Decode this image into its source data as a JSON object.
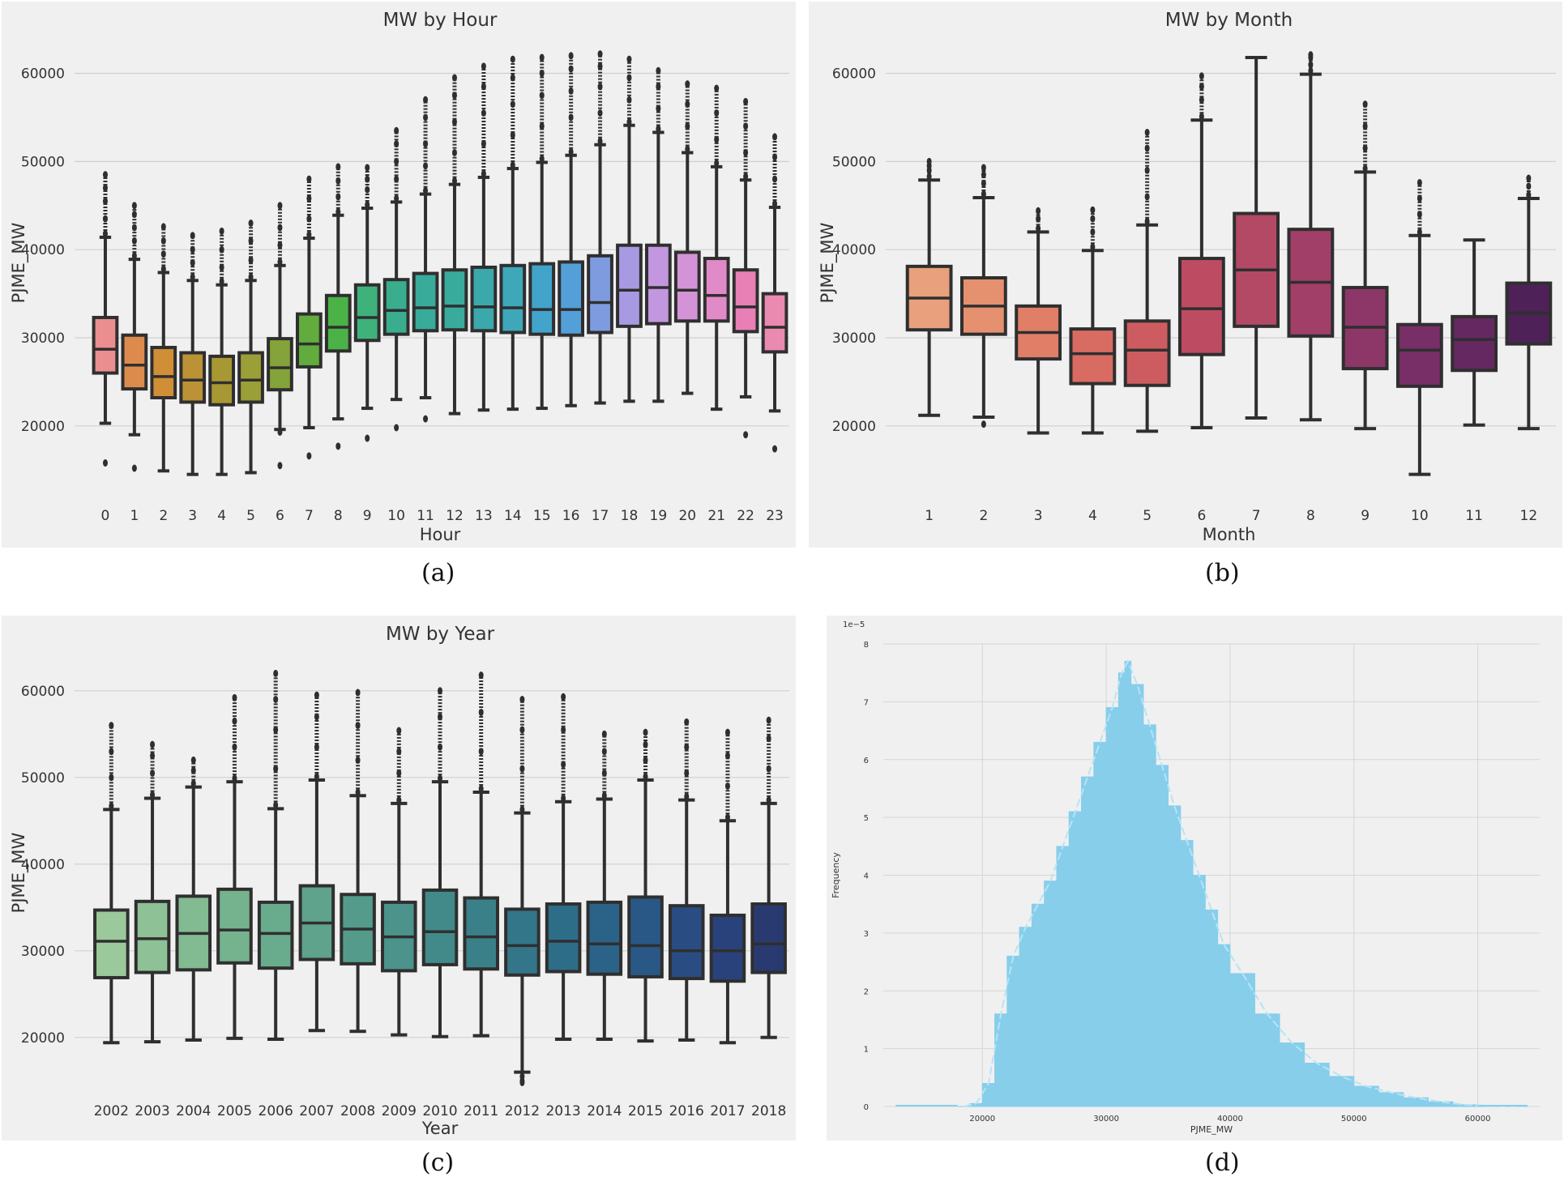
{
  "captions": {
    "a": "(a)",
    "b": "(b)",
    "c": "(c)",
    "d": "(d)"
  },
  "chart_data": [
    {
      "id": "a",
      "type": "box",
      "title": "MW by Hour",
      "xlabel": "Hour",
      "ylabel": "PJME_MW",
      "ylim": [
        13000,
        64000
      ],
      "yticks": [
        20000,
        30000,
        40000,
        50000,
        60000
      ],
      "categories": [
        "0",
        "1",
        "2",
        "3",
        "4",
        "5",
        "6",
        "7",
        "8",
        "9",
        "10",
        "11",
        "12",
        "13",
        "14",
        "15",
        "16",
        "17",
        "18",
        "19",
        "20",
        "21",
        "22",
        "23"
      ],
      "colors": [
        "#eb8e8f",
        "#dd8b4d",
        "#d08e36",
        "#bb9236",
        "#a89833",
        "#9aa037",
        "#84a33a",
        "#62ab3d",
        "#4ab247",
        "#3fb27c",
        "#3aad8e",
        "#38ab9b",
        "#39ab9d",
        "#3ba9ab",
        "#3ea7ba",
        "#42a3cb",
        "#53a0d9",
        "#7f9be0",
        "#a79ae2",
        "#c297e0",
        "#d493d6",
        "#e18ac8",
        "#e880b6",
        "#eb8ab0"
      ],
      "boxes": [
        {
          "q1": 26000,
          "med": 28700,
          "q3": 32300,
          "lo": 20300,
          "hi": 41400,
          "out_hi": [
            41800,
            43500,
            45500,
            47000,
            48500
          ],
          "out_lo": [
            15800
          ]
        },
        {
          "q1": 24200,
          "med": 26900,
          "q3": 30300,
          "lo": 19000,
          "hi": 38900,
          "out_hi": [
            39300,
            41000,
            42500,
            44000,
            45000
          ],
          "out_lo": [
            15200
          ]
        },
        {
          "q1": 23200,
          "med": 25600,
          "q3": 28900,
          "lo": 14900,
          "hi": 37400,
          "out_hi": [
            37800,
            39500,
            41000,
            42600
          ],
          "out_lo": []
        },
        {
          "q1": 22700,
          "med": 25200,
          "q3": 28300,
          "lo": 14500,
          "hi": 36500,
          "out_hi": [
            36900,
            38500,
            40000,
            41600
          ],
          "out_lo": []
        },
        {
          "q1": 22400,
          "med": 24900,
          "q3": 27900,
          "lo": 14500,
          "hi": 36000,
          "out_hi": [
            36400,
            38000,
            40000,
            42100
          ],
          "out_lo": []
        },
        {
          "q1": 22700,
          "med": 25200,
          "q3": 28300,
          "lo": 14700,
          "hi": 36500,
          "out_hi": [
            36900,
            38800,
            41000,
            43000
          ],
          "out_lo": []
        },
        {
          "q1": 24100,
          "med": 26600,
          "q3": 29900,
          "lo": 19600,
          "hi": 38200,
          "out_hi": [
            38600,
            40500,
            42500,
            45000
          ],
          "out_lo": [
            19300,
            15500
          ]
        },
        {
          "q1": 26700,
          "med": 29300,
          "q3": 32700,
          "lo": 19800,
          "hi": 41300,
          "out_hi": [
            41700,
            43500,
            45800,
            48000
          ],
          "out_lo": [
            16600
          ]
        },
        {
          "q1": 28500,
          "med": 31200,
          "q3": 34800,
          "lo": 20800,
          "hi": 43900,
          "out_hi": [
            44300,
            46000,
            47800,
            49400
          ],
          "out_lo": [
            17700
          ]
        },
        {
          "q1": 29700,
          "med": 32300,
          "q3": 36000,
          "lo": 22000,
          "hi": 44700,
          "out_hi": [
            45100,
            46800,
            48000,
            49300
          ],
          "out_lo": [
            18600
          ]
        },
        {
          "q1": 30400,
          "med": 33100,
          "q3": 36600,
          "lo": 23000,
          "hi": 45400,
          "out_hi": [
            45800,
            48000,
            50000,
            52000,
            53500
          ],
          "out_lo": [
            19800
          ]
        },
        {
          "q1": 30800,
          "med": 33400,
          "q3": 37300,
          "lo": 23200,
          "hi": 46300,
          "out_hi": [
            46700,
            49500,
            52000,
            55000,
            57000
          ],
          "out_lo": [
            20800
          ]
        },
        {
          "q1": 30900,
          "med": 33600,
          "q3": 37700,
          "lo": 21400,
          "hi": 47400,
          "out_hi": [
            47800,
            51000,
            54500,
            57500,
            59500
          ],
          "out_lo": []
        },
        {
          "q1": 30800,
          "med": 33500,
          "q3": 38000,
          "lo": 21800,
          "hi": 48200,
          "out_hi": [
            48600,
            52000,
            55500,
            58500,
            60800
          ],
          "out_lo": []
        },
        {
          "q1": 30600,
          "med": 33400,
          "q3": 38200,
          "lo": 21900,
          "hi": 49200,
          "out_hi": [
            49600,
            53000,
            56500,
            59500,
            61600
          ],
          "out_lo": []
        },
        {
          "q1": 30400,
          "med": 33200,
          "q3": 38400,
          "lo": 22000,
          "hi": 49900,
          "out_hi": [
            50300,
            54000,
            57500,
            60000,
            61800
          ],
          "out_lo": []
        },
        {
          "q1": 30300,
          "med": 33200,
          "q3": 38600,
          "lo": 22300,
          "hi": 50700,
          "out_hi": [
            51100,
            55000,
            58000,
            60500,
            62000
          ],
          "out_lo": []
        },
        {
          "q1": 30600,
          "med": 34000,
          "q3": 39300,
          "lo": 22600,
          "hi": 51900,
          "out_hi": [
            52300,
            55500,
            58500,
            60800,
            62200
          ],
          "out_lo": []
        },
        {
          "q1": 31300,
          "med": 35400,
          "q3": 40500,
          "lo": 22800,
          "hi": 54100,
          "out_hi": [
            54500,
            57000,
            59500,
            61600
          ],
          "out_lo": []
        },
        {
          "q1": 31600,
          "med": 35700,
          "q3": 40500,
          "lo": 22800,
          "hi": 53300,
          "out_hi": [
            53700,
            56000,
            58500,
            60300
          ],
          "out_lo": []
        },
        {
          "q1": 31900,
          "med": 35400,
          "q3": 39700,
          "lo": 23700,
          "hi": 51000,
          "out_hi": [
            51400,
            54000,
            56500,
            58800
          ],
          "out_lo": []
        },
        {
          "q1": 31900,
          "med": 34800,
          "q3": 39000,
          "lo": 21900,
          "hi": 49400,
          "out_hi": [
            49800,
            52500,
            55500,
            58300
          ],
          "out_lo": []
        },
        {
          "q1": 30700,
          "med": 33500,
          "q3": 37700,
          "lo": 23300,
          "hi": 47900,
          "out_hi": [
            48300,
            51000,
            54000,
            56800
          ],
          "out_lo": [
            19000
          ]
        },
        {
          "q1": 28400,
          "med": 31200,
          "q3": 35000,
          "lo": 21700,
          "hi": 44800,
          "out_hi": [
            45200,
            48000,
            50500,
            52800
          ],
          "out_lo": [
            17400
          ]
        }
      ]
    },
    {
      "id": "b",
      "type": "box",
      "title": "MW by Month",
      "xlabel": "Month",
      "ylabel": "PJME_MW",
      "ylim": [
        13000,
        64000
      ],
      "yticks": [
        20000,
        30000,
        40000,
        50000,
        60000
      ],
      "categories": [
        "1",
        "2",
        "3",
        "4",
        "5",
        "6",
        "7",
        "8",
        "9",
        "10",
        "11",
        "12"
      ],
      "colors": [
        "#e9a07c",
        "#e5906f",
        "#e07e67",
        "#d86c62",
        "#cd5c60",
        "#bd4c62",
        "#b44966",
        "#a13f68",
        "#8c3768",
        "#782e66",
        "#652861",
        "#4e2158"
      ],
      "boxes": [
        {
          "q1": 30900,
          "med": 34500,
          "q3": 38100,
          "lo": 21200,
          "hi": 47900,
          "out_hi": [
            48300,
            49000,
            49500,
            50000
          ],
          "out_lo": []
        },
        {
          "q1": 30400,
          "med": 33600,
          "q3": 36800,
          "lo": 21000,
          "hi": 45900,
          "out_hi": [
            46300,
            47500,
            48500,
            49300
          ],
          "out_lo": [
            20200
          ]
        },
        {
          "q1": 27600,
          "med": 30600,
          "q3": 33600,
          "lo": 19200,
          "hi": 42000,
          "out_hi": [
            42400,
            43500,
            44400
          ],
          "out_lo": []
        },
        {
          "q1": 24800,
          "med": 28200,
          "q3": 31000,
          "lo": 19200,
          "hi": 39900,
          "out_hi": [
            40300,
            42000,
            43500,
            44500
          ],
          "out_lo": []
        },
        {
          "q1": 24600,
          "med": 28600,
          "q3": 31900,
          "lo": 19400,
          "hi": 42800,
          "out_hi": [
            43200,
            46000,
            49000,
            51500,
            53300
          ],
          "out_lo": []
        },
        {
          "q1": 28100,
          "med": 33300,
          "q3": 39000,
          "lo": 19800,
          "hi": 54700,
          "out_hi": [
            55100,
            57000,
            58500,
            59700
          ],
          "out_lo": []
        },
        {
          "q1": 31300,
          "med": 37700,
          "q3": 44100,
          "lo": 20900,
          "hi": 61800,
          "out_hi": [],
          "out_lo": []
        },
        {
          "q1": 30200,
          "med": 36300,
          "q3": 42300,
          "lo": 20700,
          "hi": 59900,
          "out_hi": [
            60300,
            61000,
            61800,
            62100
          ],
          "out_lo": []
        },
        {
          "q1": 26500,
          "med": 31200,
          "q3": 35700,
          "lo": 19700,
          "hi": 48800,
          "out_hi": [
            49200,
            51500,
            54000,
            56500
          ],
          "out_lo": []
        },
        {
          "q1": 24500,
          "med": 28600,
          "q3": 31500,
          "lo": 14500,
          "hi": 41600,
          "out_hi": [
            42000,
            44000,
            45800,
            47600
          ],
          "out_lo": []
        },
        {
          "q1": 26300,
          "med": 29800,
          "q3": 32400,
          "lo": 20100,
          "hi": 41100,
          "out_hi": [],
          "out_lo": []
        },
        {
          "q1": 29300,
          "med": 32800,
          "q3": 36200,
          "lo": 19700,
          "hi": 45800,
          "out_hi": [
            46200,
            47200,
            48100
          ],
          "out_lo": []
        }
      ]
    },
    {
      "id": "c",
      "type": "box",
      "title": "MW by Year",
      "xlabel": "Year",
      "ylabel": "PJME_MW",
      "ylim": [
        14000,
        64000
      ],
      "yticks": [
        20000,
        30000,
        40000,
        50000,
        60000
      ],
      "categories": [
        "2002",
        "2003",
        "2004",
        "2005",
        "2006",
        "2007",
        "2008",
        "2009",
        "2010",
        "2011",
        "2012",
        "2013",
        "2014",
        "2015",
        "2016",
        "2017",
        "2018"
      ],
      "colors": [
        "#9cc99b",
        "#8ec196",
        "#82ba92",
        "#75b28e",
        "#69ab8d",
        "#5fa38c",
        "#549b8b",
        "#4b938b",
        "#42898a",
        "#3a8089",
        "#337689",
        "#2e6d88",
        "#2b6287",
        "#295886",
        "#294d82",
        "#29427b",
        "#293a71"
      ],
      "boxes": [
        {
          "q1": 26900,
          "med": 31100,
          "q3": 34700,
          "lo": 19400,
          "hi": 46300,
          "out_hi": [
            46700,
            50000,
            53000,
            56000
          ],
          "out_lo": []
        },
        {
          "q1": 27500,
          "med": 31400,
          "q3": 35700,
          "lo": 19500,
          "hi": 47600,
          "out_hi": [
            48000,
            50500,
            52500,
            53800
          ],
          "out_lo": []
        },
        {
          "q1": 27800,
          "med": 32000,
          "q3": 36300,
          "lo": 19700,
          "hi": 48900,
          "out_hi": [
            49300,
            50800,
            52000
          ],
          "out_lo": []
        },
        {
          "q1": 28600,
          "med": 32400,
          "q3": 37100,
          "lo": 19900,
          "hi": 49500,
          "out_hi": [
            49900,
            53500,
            56500,
            59200
          ],
          "out_lo": []
        },
        {
          "q1": 28000,
          "med": 32000,
          "q3": 35600,
          "lo": 19800,
          "hi": 46400,
          "out_hi": [
            46800,
            51000,
            55500,
            59000,
            62000
          ],
          "out_lo": []
        },
        {
          "q1": 29000,
          "med": 33200,
          "q3": 37500,
          "lo": 20800,
          "hi": 49700,
          "out_hi": [
            50100,
            53500,
            57000,
            59500
          ],
          "out_lo": []
        },
        {
          "q1": 28500,
          "med": 32500,
          "q3": 36500,
          "lo": 20700,
          "hi": 47900,
          "out_hi": [
            48300,
            52000,
            56000,
            59800
          ],
          "out_lo": []
        },
        {
          "q1": 27700,
          "med": 31600,
          "q3": 35600,
          "lo": 20300,
          "hi": 47000,
          "out_hi": [
            47400,
            50500,
            53000,
            55400
          ],
          "out_lo": []
        },
        {
          "q1": 28400,
          "med": 32200,
          "q3": 37000,
          "lo": 20100,
          "hi": 49500,
          "out_hi": [
            49900,
            53500,
            57000,
            60000
          ],
          "out_lo": []
        },
        {
          "q1": 27900,
          "med": 31600,
          "q3": 36100,
          "lo": 20200,
          "hi": 48300,
          "out_hi": [
            48700,
            53000,
            57500,
            61800
          ],
          "out_lo": []
        },
        {
          "q1": 27200,
          "med": 30600,
          "q3": 34800,
          "lo": 16000,
          "hi": 45900,
          "out_hi": [
            46300,
            51000,
            55500,
            59000
          ],
          "out_lo": [
            15500,
            15000,
            14800
          ]
        },
        {
          "q1": 27600,
          "med": 31100,
          "q3": 35400,
          "lo": 19800,
          "hi": 47200,
          "out_hi": [
            47600,
            51500,
            55500,
            59300
          ],
          "out_lo": []
        },
        {
          "q1": 27300,
          "med": 30800,
          "q3": 35600,
          "lo": 19800,
          "hi": 47500,
          "out_hi": [
            47900,
            50500,
            53000,
            55000
          ],
          "out_lo": []
        },
        {
          "q1": 27000,
          "med": 30600,
          "q3": 36200,
          "lo": 19600,
          "hi": 49700,
          "out_hi": [
            50100,
            52000,
            53800,
            55200
          ],
          "out_lo": []
        },
        {
          "q1": 26800,
          "med": 30000,
          "q3": 35200,
          "lo": 19700,
          "hi": 47400,
          "out_hi": [
            47800,
            50500,
            53500,
            56400
          ],
          "out_lo": []
        },
        {
          "q1": 26500,
          "med": 30000,
          "q3": 34100,
          "lo": 19400,
          "hi": 45000,
          "out_hi": [
            45400,
            49000,
            52500,
            55200
          ],
          "out_lo": []
        },
        {
          "q1": 27500,
          "med": 30800,
          "q3": 35400,
          "lo": 20000,
          "hi": 47000,
          "out_hi": [
            47400,
            51000,
            54500,
            56600
          ],
          "out_lo": []
        }
      ]
    },
    {
      "id": "d",
      "type": "histogram",
      "title": "",
      "xlabel": "PJME_MW",
      "ylabel": "Frequency",
      "offset_label": "1e−5",
      "color": "#87ceeb",
      "xlim": [
        12000,
        65000
      ],
      "ylim": [
        0,
        8
      ],
      "xticks": [
        20000,
        30000,
        40000,
        50000,
        60000
      ],
      "yticks": [
        0,
        1,
        2,
        3,
        4,
        5,
        6,
        7,
        8
      ],
      "bins_x": [
        18000,
        19000,
        20000,
        21000,
        22000,
        23000,
        24000,
        25000,
        26000,
        27000,
        28000,
        29000,
        30000,
        31000,
        31500,
        32000,
        33000,
        34000,
        35000,
        36000,
        37000,
        38000,
        39000,
        40000,
        42000,
        44000,
        46000,
        48000,
        50000,
        52000,
        54000,
        56000,
        58000,
        60000,
        62000,
        64000
      ],
      "density": [
        0,
        0.05,
        0.4,
        1.6,
        2.6,
        3.1,
        3.5,
        3.9,
        4.5,
        5.1,
        5.7,
        6.3,
        6.9,
        7.5,
        7.7,
        7.3,
        6.6,
        5.9,
        5.2,
        4.6,
        4.0,
        3.4,
        2.8,
        2.3,
        1.6,
        1.1,
        0.75,
        0.52,
        0.35,
        0.24,
        0.15,
        0.08,
        0.03,
        0.01,
        0.005,
        0
      ]
    }
  ]
}
